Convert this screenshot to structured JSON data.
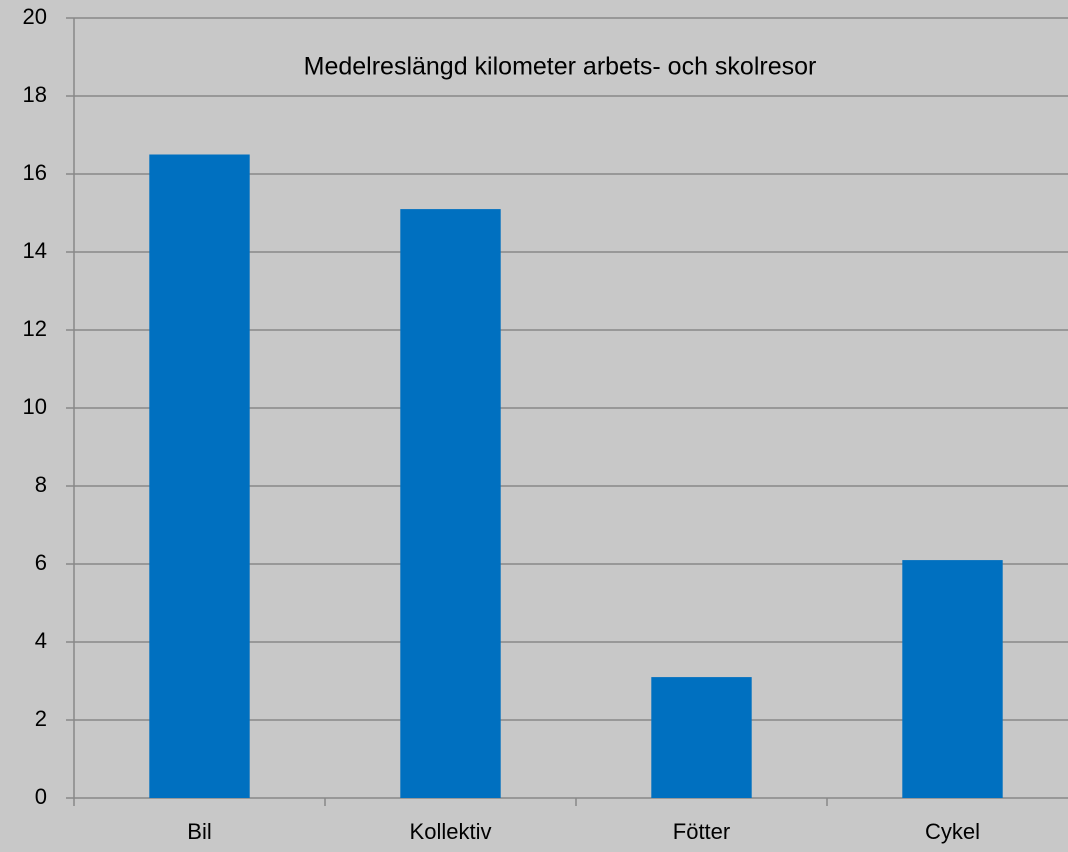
{
  "chart_data": {
    "type": "bar",
    "title": "Medelreslängd kilometer arbets- och skolresor",
    "categories": [
      "Bil",
      "Kollektiv",
      "Fötter",
      "Cykel"
    ],
    "values": [
      16.5,
      15.1,
      3.1,
      6.1
    ],
    "color": "#0070c0",
    "ylim": [
      0,
      20
    ],
    "yticks": [
      0,
      2,
      4,
      6,
      8,
      10,
      12,
      14,
      16,
      18,
      20
    ],
    "grid": true
  }
}
